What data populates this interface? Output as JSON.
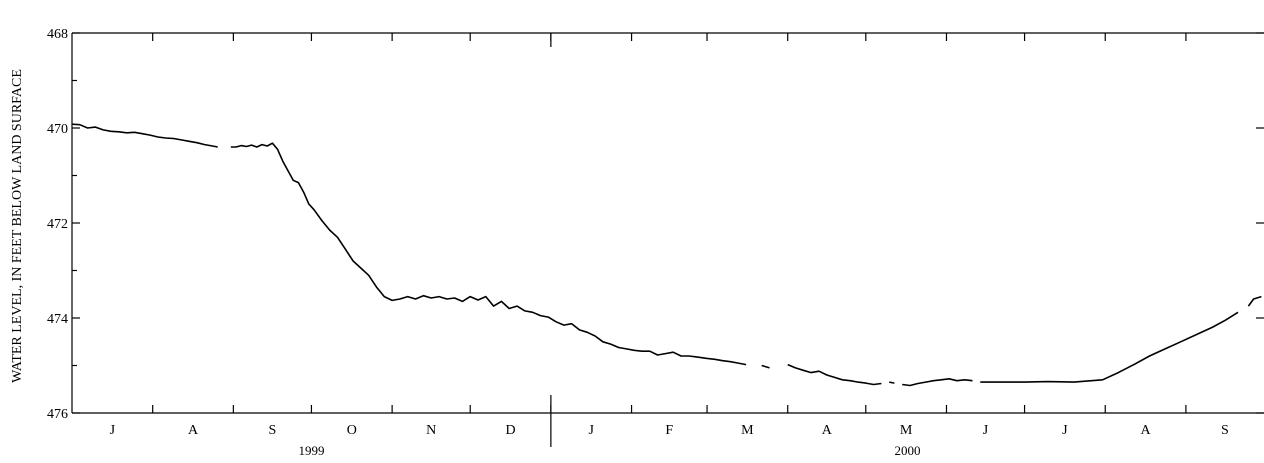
{
  "chart_data": {
    "type": "line",
    "title": "",
    "ylabel": "WATER LEVEL, IN FEET BELOW LAND SURFACE",
    "xlabel": "",
    "y_axis_inverted": true,
    "ylim": [
      468,
      476
    ],
    "y_ticks": [
      {
        "value": 468,
        "label": "468"
      },
      {
        "value": 470,
        "label": "470"
      },
      {
        "value": 472,
        "label": "472"
      },
      {
        "value": 474,
        "label": "474"
      },
      {
        "value": 476,
        "label": "476"
      }
    ],
    "xlim": [
      "1999-07-01",
      "2000-09-30"
    ],
    "months": [
      {
        "label": "J",
        "start": "1999-07-01",
        "end": "1999-08-01"
      },
      {
        "label": "A",
        "start": "1999-08-01",
        "end": "1999-09-01"
      },
      {
        "label": "S",
        "start": "1999-09-01",
        "end": "1999-10-01"
      },
      {
        "label": "O",
        "start": "1999-10-01",
        "end": "1999-11-01"
      },
      {
        "label": "N",
        "start": "1999-11-01",
        "end": "1999-12-01"
      },
      {
        "label": "D",
        "start": "1999-12-01",
        "end": "2000-01-01"
      },
      {
        "label": "J",
        "start": "2000-01-01",
        "end": "2000-02-01"
      },
      {
        "label": "F",
        "start": "2000-02-01",
        "end": "2000-03-01"
      },
      {
        "label": "M",
        "start": "2000-03-01",
        "end": "2000-04-01"
      },
      {
        "label": "A",
        "start": "2000-04-01",
        "end": "2000-05-01"
      },
      {
        "label": "M",
        "start": "2000-05-01",
        "end": "2000-06-01"
      },
      {
        "label": "J",
        "start": "2000-06-01",
        "end": "2000-07-01"
      },
      {
        "label": "J",
        "start": "2000-07-01",
        "end": "2000-08-01"
      },
      {
        "label": "A",
        "start": "2000-08-01",
        "end": "2000-09-01"
      },
      {
        "label": "S",
        "start": "2000-09-01",
        "end": "2000-10-01"
      }
    ],
    "years": [
      {
        "label": "1999",
        "start": "1999-07-01",
        "end": "2000-01-01"
      },
      {
        "label": "2000",
        "start": "2000-01-01",
        "end": "2000-10-01"
      }
    ],
    "year_divider": "2000-01-01",
    "grid": false,
    "series": [
      {
        "segments": [
          [
            [
              "1999-07-01",
              469.92
            ],
            [
              "1999-07-04",
              469.93
            ],
            [
              "1999-07-07",
              470.0
            ],
            [
              "1999-07-10",
              469.98
            ],
            [
              "1999-07-13",
              470.04
            ],
            [
              "1999-07-16",
              470.07
            ],
            [
              "1999-07-19",
              470.08
            ],
            [
              "1999-07-22",
              470.1
            ],
            [
              "1999-07-25",
              470.09
            ],
            [
              "1999-07-28",
              470.12
            ],
            [
              "1999-07-31",
              470.15
            ],
            [
              "1999-08-03",
              470.19
            ],
            [
              "1999-08-06",
              470.21
            ],
            [
              "1999-08-09",
              470.22
            ],
            [
              "1999-08-12",
              470.25
            ],
            [
              "1999-08-15",
              470.28
            ],
            [
              "1999-08-18",
              470.31
            ],
            [
              "1999-08-21",
              470.35
            ],
            [
              "1999-08-24",
              470.38
            ],
            [
              "1999-08-26",
              470.4
            ]
          ],
          [
            [
              "1999-08-31",
              470.4
            ],
            [
              "1999-09-02",
              470.4
            ],
            [
              "1999-09-04",
              470.37
            ],
            [
              "1999-09-06",
              470.39
            ],
            [
              "1999-09-08",
              470.36
            ],
            [
              "1999-09-10",
              470.4
            ],
            [
              "1999-09-12",
              470.35
            ],
            [
              "1999-09-14",
              470.38
            ],
            [
              "1999-09-16",
              470.32
            ],
            [
              "1999-09-18",
              470.45
            ],
            [
              "1999-09-20",
              470.7
            ],
            [
              "1999-09-22",
              470.9
            ],
            [
              "1999-09-24",
              471.1
            ],
            [
              "1999-09-26",
              471.15
            ],
            [
              "1999-09-28",
              471.35
            ],
            [
              "1999-09-30",
              471.6
            ],
            [
              "1999-10-02",
              471.72
            ],
            [
              "1999-10-05",
              471.95
            ],
            [
              "1999-10-08",
              472.15
            ],
            [
              "1999-10-11",
              472.3
            ],
            [
              "1999-10-14",
              472.55
            ],
            [
              "1999-10-17",
              472.8
            ],
            [
              "1999-10-20",
              472.95
            ],
            [
              "1999-10-23",
              473.1
            ],
            [
              "1999-10-26",
              473.35
            ],
            [
              "1999-10-29",
              473.55
            ],
            [
              "1999-11-01",
              473.63
            ],
            [
              "1999-11-04",
              473.6
            ],
            [
              "1999-11-07",
              473.55
            ],
            [
              "1999-11-10",
              473.6
            ],
            [
              "1999-11-13",
              473.53
            ],
            [
              "1999-11-16",
              473.58
            ],
            [
              "1999-11-19",
              473.55
            ],
            [
              "1999-11-22",
              473.6
            ],
            [
              "1999-11-25",
              473.58
            ],
            [
              "1999-11-28",
              473.65
            ],
            [
              "1999-12-01",
              473.55
            ],
            [
              "1999-12-04",
              473.62
            ],
            [
              "1999-12-07",
              473.55
            ],
            [
              "1999-12-10",
              473.75
            ],
            [
              "1999-12-13",
              473.65
            ],
            [
              "1999-12-16",
              473.8
            ],
            [
              "1999-12-19",
              473.75
            ],
            [
              "1999-12-22",
              473.85
            ],
            [
              "1999-12-25",
              473.88
            ],
            [
              "1999-12-28",
              473.95
            ],
            [
              "1999-12-31",
              473.98
            ],
            [
              "2000-01-03",
              474.08
            ],
            [
              "2000-01-06",
              474.15
            ],
            [
              "2000-01-09",
              474.12
            ],
            [
              "2000-01-12",
              474.25
            ],
            [
              "2000-01-15",
              474.3
            ],
            [
              "2000-01-18",
              474.38
            ],
            [
              "2000-01-21",
              474.5
            ],
            [
              "2000-01-24",
              474.55
            ],
            [
              "2000-01-27",
              474.62
            ],
            [
              "2000-01-30",
              474.65
            ],
            [
              "2000-02-02",
              474.68
            ],
            [
              "2000-02-05",
              474.7
            ],
            [
              "2000-02-08",
              474.7
            ],
            [
              "2000-02-11",
              474.78
            ],
            [
              "2000-02-14",
              474.75
            ],
            [
              "2000-02-17",
              474.72
            ],
            [
              "2000-02-20",
              474.8
            ],
            [
              "2000-02-23",
              474.8
            ],
            [
              "2000-02-26",
              474.82
            ],
            [
              "2000-03-01",
              474.85
            ],
            [
              "2000-03-04",
              474.87
            ],
            [
              "2000-03-07",
              474.9
            ],
            [
              "2000-03-10",
              474.92
            ],
            [
              "2000-03-13",
              474.95
            ],
            [
              "2000-03-16",
              474.98
            ]
          ],
          [
            [
              "2000-03-22",
              475.0
            ],
            [
              "2000-03-25",
              475.05
            ]
          ],
          [
            [
              "2000-04-01",
              474.98
            ],
            [
              "2000-04-04",
              475.05
            ],
            [
              "2000-04-07",
              475.1
            ],
            [
              "2000-04-10",
              475.15
            ],
            [
              "2000-04-13",
              475.12
            ],
            [
              "2000-04-16",
              475.2
            ],
            [
              "2000-04-19",
              475.25
            ],
            [
              "2000-04-22",
              475.3
            ],
            [
              "2000-04-25",
              475.32
            ],
            [
              "2000-04-28",
              475.35
            ],
            [
              "2000-05-01",
              475.37
            ],
            [
              "2000-05-04",
              475.4
            ],
            [
              "2000-05-07",
              475.38
            ]
          ],
          [
            [
              "2000-05-10",
              475.35
            ],
            [
              "2000-05-12",
              475.37
            ]
          ],
          [
            [
              "2000-05-15",
              475.4
            ],
            [
              "2000-05-18",
              475.42
            ],
            [
              "2000-05-21",
              475.38
            ],
            [
              "2000-05-24",
              475.35
            ],
            [
              "2000-05-27",
              475.32
            ],
            [
              "2000-05-30",
              475.3
            ],
            [
              "2000-06-02",
              475.28
            ],
            [
              "2000-06-05",
              475.32
            ],
            [
              "2000-06-08",
              475.3
            ],
            [
              "2000-06-11",
              475.32
            ]
          ],
          [
            [
              "2000-06-14",
              475.35
            ],
            [
              "2000-06-22",
              475.35
            ],
            [
              "2000-07-01",
              475.35
            ],
            [
              "2000-07-10",
              475.34
            ],
            [
              "2000-07-20",
              475.35
            ],
            [
              "2000-07-31",
              475.3
            ],
            [
              "2000-08-06",
              475.15
            ],
            [
              "2000-08-12",
              474.98
            ],
            [
              "2000-08-18",
              474.8
            ],
            [
              "2000-08-24",
              474.65
            ],
            [
              "2000-08-30",
              474.5
            ],
            [
              "2000-09-05",
              474.35
            ],
            [
              "2000-09-11",
              474.2
            ],
            [
              "2000-09-16",
              474.05
            ],
            [
              "2000-09-21",
              473.88
            ]
          ],
          [
            [
              "2000-09-25",
              473.75
            ],
            [
              "2000-09-27",
              473.6
            ],
            [
              "2000-09-30",
              473.55
            ]
          ]
        ]
      }
    ]
  }
}
